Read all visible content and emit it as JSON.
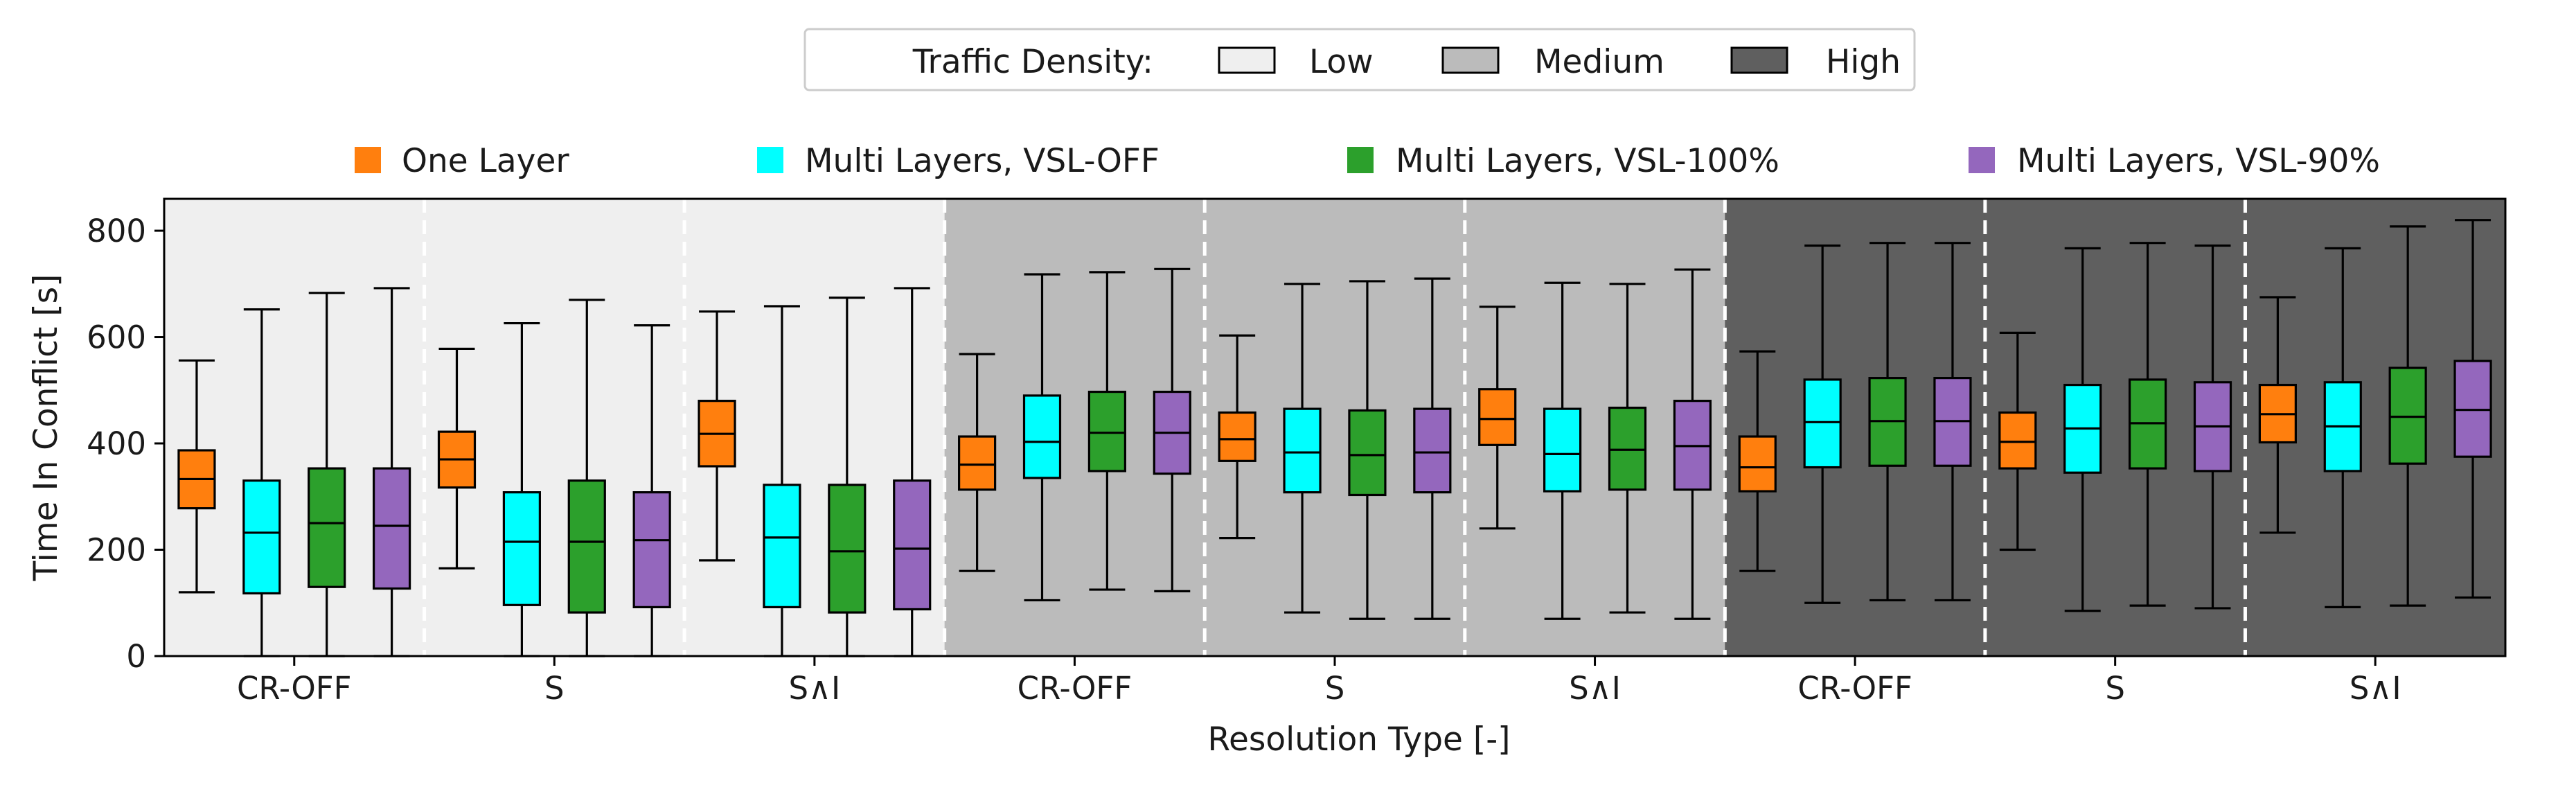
{
  "chart_data": {
    "type": "boxplot",
    "title": "",
    "xlabel": "Resolution Type [-]",
    "ylabel": "Time In Conflict [s]",
    "ylim": [
      0,
      860
    ],
    "yticks": [
      0,
      200,
      400,
      600,
      800
    ],
    "density_legend": {
      "title": "Traffic Density:",
      "items": [
        {
          "label": "Low",
          "color": "#efefef"
        },
        {
          "label": "Medium",
          "color": "#bbbbbb"
        },
        {
          "label": "High",
          "color": "#5f5f5f"
        }
      ]
    },
    "series": [
      {
        "name": "One Layer",
        "color": "#ff7f0e"
      },
      {
        "name": "Multi Layers, VSL-OFF",
        "color": "#00ffff"
      },
      {
        "name": "Multi Layers, VSL-100%",
        "color": "#2ca02c"
      },
      {
        "name": "Multi Layers, VSL-90%",
        "color": "#9467bd"
      }
    ],
    "groups": [
      {
        "label": "CR-OFF",
        "density": "Low",
        "boxes": [
          {
            "min": 120,
            "q1": 278,
            "median": 333,
            "q3": 387,
            "max": 556
          },
          {
            "min": 0,
            "q1": 118,
            "median": 232,
            "q3": 330,
            "max": 652
          },
          {
            "min": 0,
            "q1": 130,
            "median": 250,
            "q3": 353,
            "max": 683
          },
          {
            "min": 0,
            "q1": 127,
            "median": 245,
            "q3": 353,
            "max": 692
          }
        ]
      },
      {
        "label": "S",
        "density": "Low",
        "boxes": [
          {
            "min": 165,
            "q1": 317,
            "median": 370,
            "q3": 422,
            "max": 578
          },
          {
            "min": 0,
            "q1": 96,
            "median": 215,
            "q3": 308,
            "max": 626
          },
          {
            "min": 0,
            "q1": 82,
            "median": 215,
            "q3": 330,
            "max": 670
          },
          {
            "min": 0,
            "q1": 92,
            "median": 218,
            "q3": 308,
            "max": 622
          }
        ]
      },
      {
        "label": "S∧I",
        "density": "Low",
        "boxes": [
          {
            "min": 180,
            "q1": 357,
            "median": 418,
            "q3": 480,
            "max": 648
          },
          {
            "min": 0,
            "q1": 92,
            "median": 223,
            "q3": 322,
            "max": 658
          },
          {
            "min": 0,
            "q1": 82,
            "median": 197,
            "q3": 322,
            "max": 674
          },
          {
            "min": 0,
            "q1": 88,
            "median": 202,
            "q3": 330,
            "max": 692
          }
        ]
      },
      {
        "label": "CR-OFF",
        "density": "Medium",
        "boxes": [
          {
            "min": 160,
            "q1": 313,
            "median": 360,
            "q3": 413,
            "max": 568
          },
          {
            "min": 105,
            "q1": 335,
            "median": 403,
            "q3": 490,
            "max": 718
          },
          {
            "min": 125,
            "q1": 348,
            "median": 420,
            "q3": 497,
            "max": 722
          },
          {
            "min": 122,
            "q1": 343,
            "median": 420,
            "q3": 497,
            "max": 728
          }
        ]
      },
      {
        "label": "S",
        "density": "Medium",
        "boxes": [
          {
            "min": 222,
            "q1": 367,
            "median": 408,
            "q3": 458,
            "max": 603
          },
          {
            "min": 82,
            "q1": 308,
            "median": 383,
            "q3": 465,
            "max": 700
          },
          {
            "min": 70,
            "q1": 303,
            "median": 378,
            "q3": 462,
            "max": 705
          },
          {
            "min": 70,
            "q1": 308,
            "median": 383,
            "q3": 465,
            "max": 710
          }
        ]
      },
      {
        "label": "S∧I",
        "density": "Medium",
        "boxes": [
          {
            "min": 240,
            "q1": 397,
            "median": 446,
            "q3": 502,
            "max": 657
          },
          {
            "min": 70,
            "q1": 310,
            "median": 380,
            "q3": 465,
            "max": 702
          },
          {
            "min": 82,
            "q1": 313,
            "median": 388,
            "q3": 467,
            "max": 700
          },
          {
            "min": 70,
            "q1": 313,
            "median": 395,
            "q3": 480,
            "max": 727
          }
        ]
      },
      {
        "label": "CR-OFF",
        "density": "High",
        "boxes": [
          {
            "min": 160,
            "q1": 310,
            "median": 355,
            "q3": 413,
            "max": 573
          },
          {
            "min": 100,
            "q1": 355,
            "median": 440,
            "q3": 520,
            "max": 772
          },
          {
            "min": 105,
            "q1": 358,
            "median": 442,
            "q3": 523,
            "max": 777
          },
          {
            "min": 105,
            "q1": 358,
            "median": 442,
            "q3": 523,
            "max": 777
          }
        ]
      },
      {
        "label": "S",
        "density": "High",
        "boxes": [
          {
            "min": 200,
            "q1": 353,
            "median": 403,
            "q3": 458,
            "max": 608
          },
          {
            "min": 85,
            "q1": 345,
            "median": 428,
            "q3": 510,
            "max": 767
          },
          {
            "min": 95,
            "q1": 353,
            "median": 438,
            "q3": 520,
            "max": 777
          },
          {
            "min": 90,
            "q1": 348,
            "median": 432,
            "q3": 515,
            "max": 772
          }
        ]
      },
      {
        "label": "S∧I",
        "density": "High",
        "boxes": [
          {
            "min": 232,
            "q1": 402,
            "median": 455,
            "q3": 510,
            "max": 675
          },
          {
            "min": 92,
            "q1": 348,
            "median": 432,
            "q3": 515,
            "max": 767
          },
          {
            "min": 95,
            "q1": 362,
            "median": 450,
            "q3": 542,
            "max": 808
          },
          {
            "min": 110,
            "q1": 375,
            "median": 463,
            "q3": 555,
            "max": 820
          }
        ]
      }
    ]
  }
}
